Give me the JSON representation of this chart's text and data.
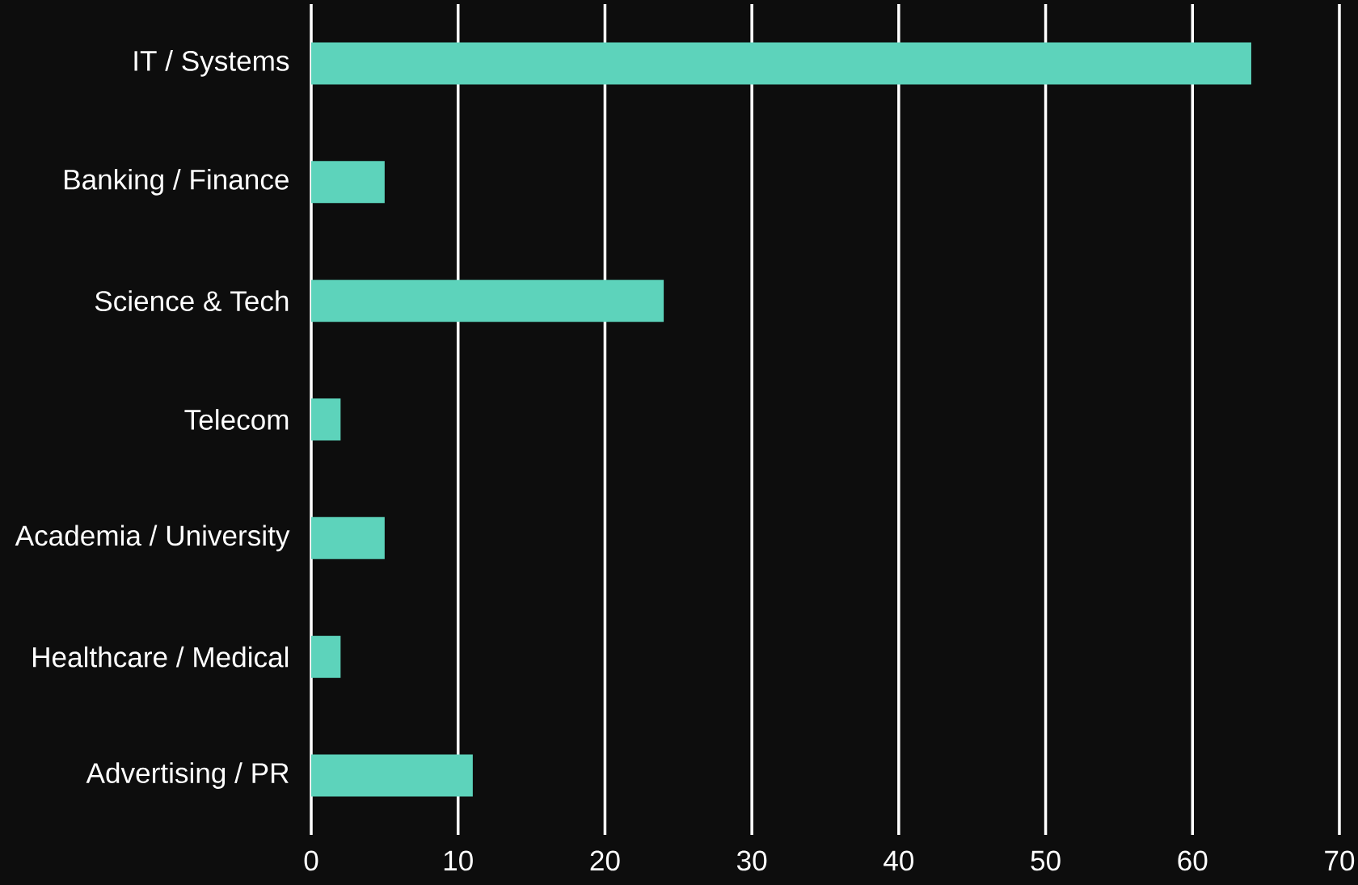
{
  "chart_data": {
    "type": "bar",
    "orientation": "horizontal",
    "categories": [
      "IT / Systems",
      "Banking / Finance",
      "Science & Tech",
      "Telecom",
      "Academia / University",
      "Healthcare / Medical",
      "Advertising / PR"
    ],
    "values": [
      64,
      5,
      24,
      2,
      5,
      2,
      11
    ],
    "color": "#5dd3bb",
    "xlim": [
      0,
      70
    ],
    "xticks": [
      0,
      10,
      20,
      30,
      40,
      50,
      60,
      70
    ],
    "grid": "x"
  }
}
